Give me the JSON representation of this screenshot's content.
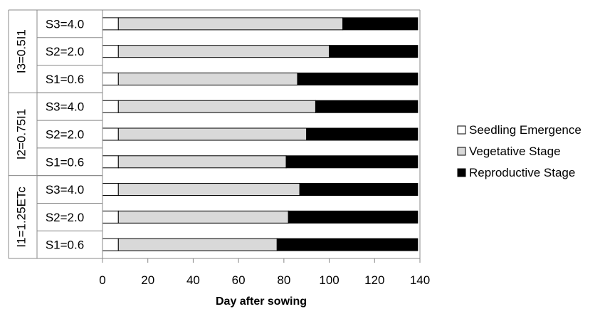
{
  "chart_data": {
    "type": "bar",
    "orientation": "horizontal",
    "stacked": true,
    "title": "",
    "xlabel": "Day after sowing",
    "ylabel": "",
    "xlim": [
      0,
      140
    ],
    "x_ticks": [
      0,
      20,
      40,
      60,
      80,
      100,
      120,
      140
    ],
    "grid": false,
    "legend_position": "right",
    "groups": [
      {
        "label": "I3=0.5I1",
        "rows": [
          {
            "label": "S3=4.0",
            "values": [
              7,
              99,
              33
            ]
          },
          {
            "label": "S2=2.0",
            "values": [
              7,
              93,
              39
            ]
          },
          {
            "label": "S1=0.6",
            "values": [
              7,
              79,
              53
            ]
          }
        ]
      },
      {
        "label": "I2=0.75I1",
        "rows": [
          {
            "label": "S3=4.0",
            "values": [
              7,
              87,
              45
            ]
          },
          {
            "label": "S2=2.0",
            "values": [
              7,
              83,
              49
            ]
          },
          {
            "label": "S1=0.6",
            "values": [
              7,
              74,
              58
            ]
          }
        ]
      },
      {
        "label": "I1=1.25ETc",
        "rows": [
          {
            "label": "S3=4.0",
            "values": [
              7,
              80,
              52
            ]
          },
          {
            "label": "S2=2.0",
            "values": [
              7,
              75,
              57
            ]
          },
          {
            "label": "S1=0.6",
            "values": [
              7,
              70,
              62
            ]
          }
        ]
      }
    ],
    "series": [
      {
        "name": "Seedling Emergence",
        "color": "#ffffff"
      },
      {
        "name": "Vegetative Stage",
        "color": "#d9d9d9"
      },
      {
        "name": "Reproductive Stage",
        "color": "#000000"
      }
    ]
  }
}
